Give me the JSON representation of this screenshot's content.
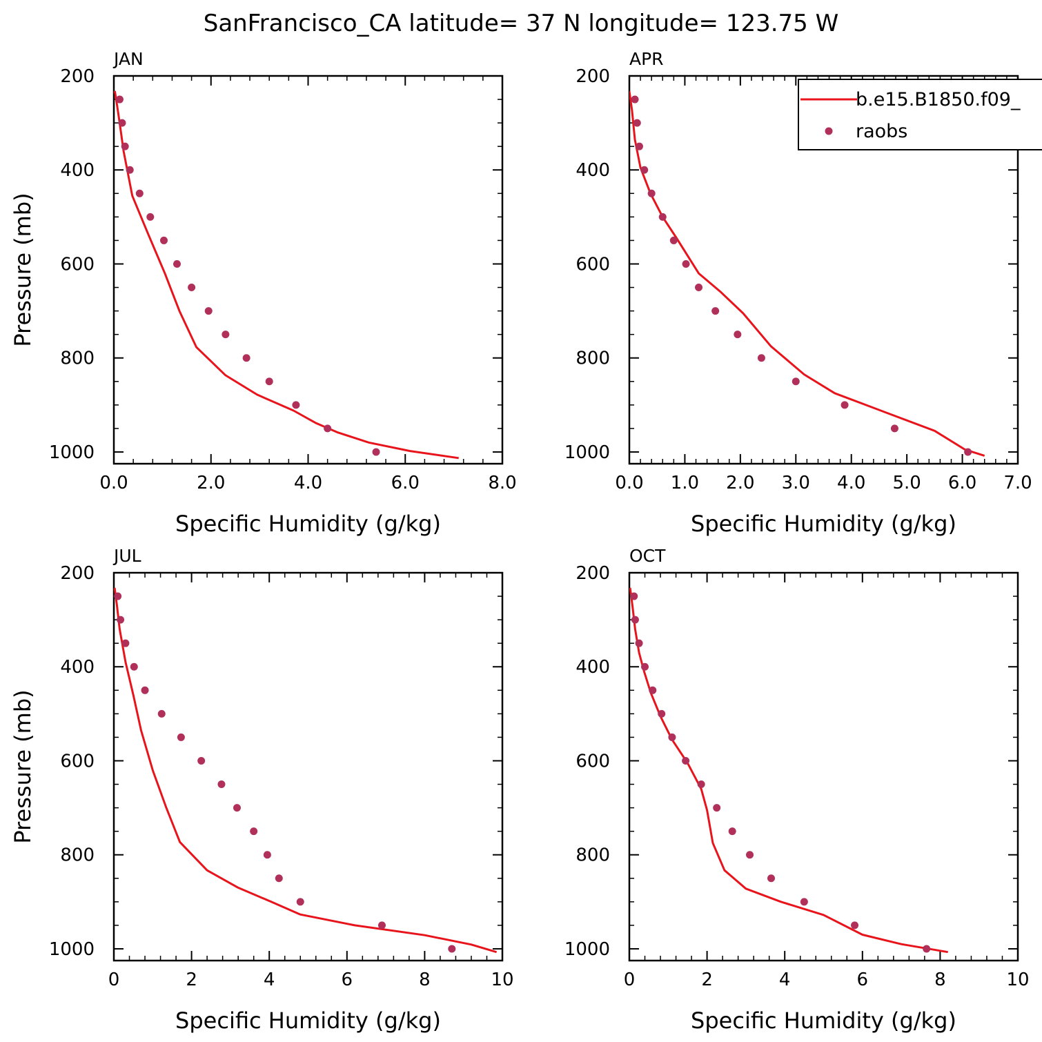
{
  "title": "SanFrancisco_CA  latitude= 37 N longitude= 123.75 W",
  "legend": {
    "entries": [
      "b.e15.B1850.f09_",
      "raobs"
    ],
    "placement": "top-right of APR panel"
  },
  "colors": {
    "model_line": "#e8141c",
    "raobs_marker": "#b0305a",
    "axes": "#000000"
  },
  "chart_data": [
    {
      "type": "line",
      "panel": "JAN",
      "xlabel": "Specific Humidity (g/kg)",
      "ylabel": "Pressure (mb)",
      "xlim": [
        0,
        8
      ],
      "ylim": [
        200,
        1025
      ],
      "y_inverted": true,
      "xticks": [
        0,
        2,
        4,
        6,
        8
      ],
      "xtick_labels": [
        "0.0",
        "2.0",
        "4.0",
        "6.0",
        "8.0"
      ],
      "yticks": [
        200,
        400,
        600,
        800,
        1000
      ],
      "ytick_labels": [
        "200",
        "400",
        "600",
        "800",
        "1000"
      ],
      "series": [
        {
          "name": "b.e15.B1850.f09_",
          "kind": "line",
          "x": [
            0.02,
            0.07,
            0.12,
            0.2,
            0.38,
            0.7,
            1.05,
            1.35,
            1.7,
            2.3,
            2.95,
            3.7,
            4.15,
            4.6,
            5.25,
            6.1,
            7.1
          ],
          "y": [
            232,
            265,
            300,
            360,
            455,
            535,
            620,
            700,
            777,
            837,
            878,
            912,
            938,
            958,
            980,
            998,
            1013
          ]
        },
        {
          "name": "raobs",
          "kind": "scatter",
          "x": [
            0.12,
            0.17,
            0.23,
            0.33,
            0.53,
            0.75,
            1.03,
            1.3,
            1.6,
            1.95,
            2.3,
            2.73,
            3.2,
            3.75,
            4.4,
            5.4
          ],
          "y": [
            250,
            300,
            350,
            400,
            450,
            500,
            550,
            600,
            650,
            700,
            750,
            800,
            850,
            900,
            950,
            1000
          ]
        }
      ]
    },
    {
      "type": "line",
      "panel": "APR",
      "xlabel": "Specific Humidity (g/kg)",
      "ylabel": "",
      "xlim": [
        0,
        7
      ],
      "ylim": [
        200,
        1025
      ],
      "y_inverted": true,
      "xticks": [
        0,
        1,
        2,
        3,
        4,
        5,
        6,
        7
      ],
      "xtick_labels": [
        "0.0",
        "1.0",
        "2.0",
        "3.0",
        "4.0",
        "5.0",
        "6.0",
        "7.0"
      ],
      "yticks": [
        200,
        400,
        600,
        800,
        1000
      ],
      "ytick_labels": [
        "200",
        "400",
        "600",
        "800",
        "1000"
      ],
      "series": [
        {
          "name": "b.e15.B1850.f09_",
          "kind": "line",
          "x": [
            0.0,
            0.05,
            0.1,
            0.2,
            0.38,
            0.6,
            0.85,
            1.25,
            1.65,
            2.05,
            2.55,
            3.15,
            3.7,
            4.6,
            5.5,
            6.05,
            6.4
          ],
          "y": [
            232,
            275,
            335,
            395,
            450,
            500,
            545,
            620,
            660,
            705,
            775,
            835,
            875,
            915,
            955,
            995,
            1008
          ]
        },
        {
          "name": "raobs",
          "kind": "scatter",
          "x": [
            0.1,
            0.14,
            0.18,
            0.27,
            0.4,
            0.6,
            0.8,
            1.02,
            1.25,
            1.55,
            1.95,
            2.38,
            3.0,
            3.88,
            4.78,
            6.1
          ],
          "y": [
            250,
            300,
            350,
            400,
            450,
            500,
            550,
            600,
            650,
            700,
            750,
            800,
            850,
            900,
            950,
            1000
          ]
        }
      ]
    },
    {
      "type": "line",
      "panel": "JUL",
      "xlabel": "Specific Humidity (g/kg)",
      "ylabel": "Pressure (mb)",
      "xlim": [
        0,
        10
      ],
      "ylim": [
        200,
        1025
      ],
      "y_inverted": true,
      "xticks": [
        0,
        2,
        4,
        6,
        8,
        10
      ],
      "xtick_labels": [
        "0",
        "2",
        "4",
        "6",
        "8",
        "10"
      ],
      "yticks": [
        200,
        400,
        600,
        800,
        1000
      ],
      "ytick_labels": [
        "200",
        "400",
        "600",
        "800",
        "1000"
      ],
      "series": [
        {
          "name": "b.e15.B1850.f09_",
          "kind": "line",
          "x": [
            0.02,
            0.08,
            0.15,
            0.3,
            0.5,
            0.7,
            1.0,
            1.35,
            1.7,
            2.4,
            3.2,
            4.05,
            4.8,
            6.2,
            8.0,
            9.2,
            9.85
          ],
          "y": [
            232,
            270,
            320,
            390,
            460,
            535,
            620,
            700,
            773,
            833,
            870,
            900,
            927,
            950,
            971,
            991,
            1007
          ]
        },
        {
          "name": "raobs",
          "kind": "scatter",
          "x": [
            0.1,
            0.17,
            0.3,
            0.52,
            0.8,
            1.23,
            1.73,
            2.25,
            2.77,
            3.17,
            3.6,
            3.95,
            4.25,
            4.8,
            6.9,
            8.7
          ],
          "y": [
            250,
            300,
            350,
            400,
            450,
            500,
            550,
            600,
            650,
            700,
            750,
            800,
            850,
            900,
            950,
            1000
          ]
        }
      ]
    },
    {
      "type": "line",
      "panel": "OCT",
      "xlabel": "Specific Humidity (g/kg)",
      "ylabel": "",
      "xlim": [
        0,
        10
      ],
      "ylim": [
        200,
        1025
      ],
      "y_inverted": true,
      "xticks": [
        0,
        2,
        4,
        6,
        8,
        10
      ],
      "xtick_labels": [
        "0",
        "2",
        "4",
        "6",
        "8",
        "10"
      ],
      "yticks": [
        200,
        400,
        600,
        800,
        1000
      ],
      "ytick_labels": [
        "200",
        "400",
        "600",
        "800",
        "1000"
      ],
      "series": [
        {
          "name": "b.e15.B1850.f09_",
          "kind": "line",
          "x": [
            0.02,
            0.08,
            0.15,
            0.25,
            0.38,
            0.55,
            0.8,
            1.1,
            1.5,
            1.85,
            2.0,
            2.15,
            2.45,
            3.0,
            3.9,
            5.0,
            6.0,
            7.0,
            8.2
          ],
          "y": [
            232,
            270,
            320,
            370,
            410,
            455,
            505,
            555,
            605,
            660,
            705,
            775,
            833,
            872,
            900,
            928,
            970,
            990,
            1007
          ]
        },
        {
          "name": "raobs",
          "kind": "scatter",
          "x": [
            0.12,
            0.15,
            0.25,
            0.4,
            0.6,
            0.83,
            1.1,
            1.45,
            1.85,
            2.25,
            2.65,
            3.1,
            3.65,
            4.5,
            5.8,
            7.65
          ],
          "y": [
            250,
            300,
            350,
            400,
            450,
            500,
            550,
            600,
            650,
            700,
            750,
            800,
            850,
            900,
            950,
            1000
          ]
        }
      ]
    }
  ]
}
